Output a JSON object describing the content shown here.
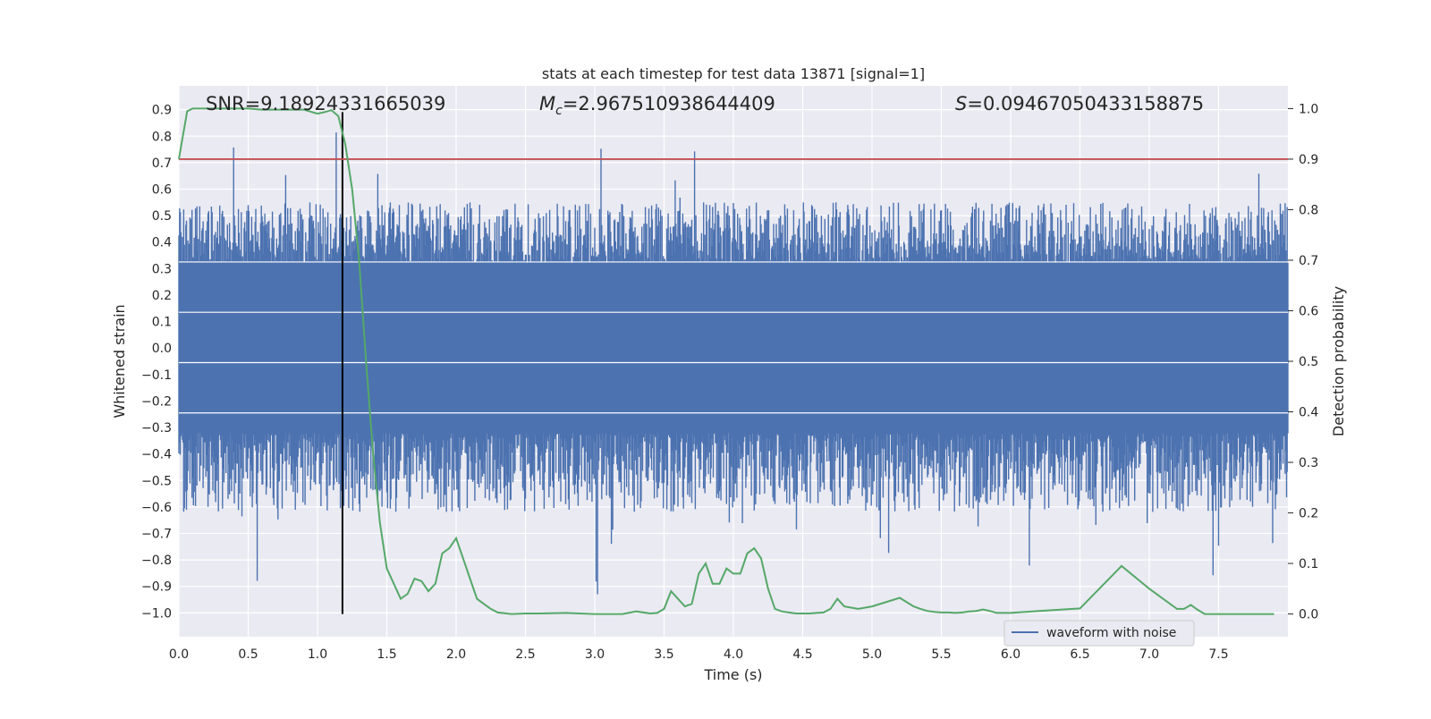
{
  "chart_data": {
    "type": "line",
    "title": "stats at each timestep for test data 13871 [signal=1]",
    "xlabel": "Time (s)",
    "ylabel": "Whitened strain",
    "y2label": "Detection probability",
    "xlim": [
      0.0,
      8.0
    ],
    "ylim": [
      -1.09,
      0.99
    ],
    "y2lim": [
      -0.045,
      1.045
    ],
    "xticks": [
      0.0,
      0.5,
      1.0,
      1.5,
      2.0,
      2.5,
      3.0,
      3.5,
      4.0,
      4.5,
      5.0,
      5.5,
      6.0,
      6.5,
      7.0,
      7.5
    ],
    "xtick_labels": [
      "0.0",
      "0.5",
      "1.0",
      "1.5",
      "2.0",
      "2.5",
      "3.0",
      "3.5",
      "4.0",
      "4.5",
      "5.0",
      "5.5",
      "6.0",
      "6.5",
      "7.0",
      "7.5"
    ],
    "yticks": [
      -1.0,
      -0.9,
      -0.8,
      -0.7,
      -0.6,
      -0.5,
      -0.4,
      -0.3,
      -0.2,
      -0.1,
      0.0,
      0.1,
      0.2,
      0.3,
      0.4,
      0.5,
      0.6,
      0.7,
      0.8,
      0.9
    ],
    "ytick_labels": [
      "−1.0",
      "−0.9",
      "−0.8",
      "−0.7",
      "−0.6",
      "−0.5",
      "−0.4",
      "−0.3",
      "−0.2",
      "−0.1",
      "0.0",
      "0.1",
      "0.2",
      "0.3",
      "0.4",
      "0.5",
      "0.6",
      "0.7",
      "0.8",
      "0.9"
    ],
    "y2ticks": [
      0.0,
      0.1,
      0.2,
      0.3,
      0.4,
      0.5,
      0.6,
      0.7,
      0.8,
      0.9,
      1.0
    ],
    "y2tick_labels": [
      "0.0",
      "0.1",
      "0.2",
      "0.3",
      "0.4",
      "0.5",
      "0.6",
      "0.7",
      "0.8",
      "0.9",
      "1.0"
    ],
    "annotations": {
      "snr": "SNR=9.18924331665039",
      "mc_symbol": "M",
      "mc_subscript": "c",
      "mc_value": "=2.967510938644409",
      "s_symbol": "S",
      "s_value": "=0.09467050433158875"
    },
    "threshold_probability": 0.9,
    "event_time": 1.18,
    "waveform": {
      "name": "waveform with noise",
      "color": "#4c72b0",
      "core_amplitude": 0.32,
      "typical_peak": 0.55,
      "max_peak": 0.9,
      "min_peak": -1.0
    },
    "probability_series": {
      "name": "Detection probability",
      "color": "#55a868",
      "x": [
        0.0,
        0.06,
        0.1,
        0.2,
        0.3,
        0.4,
        0.5,
        0.6,
        0.7,
        0.8,
        0.9,
        1.0,
        1.05,
        1.1,
        1.15,
        1.2,
        1.25,
        1.3,
        1.35,
        1.4,
        1.45,
        1.5,
        1.55,
        1.6,
        1.65,
        1.7,
        1.75,
        1.8,
        1.85,
        1.9,
        1.95,
        2.0,
        2.05,
        2.1,
        2.15,
        2.2,
        2.25,
        2.3,
        2.4,
        2.5,
        2.6,
        2.8,
        3.0,
        3.2,
        3.3,
        3.4,
        3.45,
        3.5,
        3.55,
        3.6,
        3.65,
        3.7,
        3.75,
        3.8,
        3.85,
        3.9,
        3.95,
        4.0,
        4.05,
        4.1,
        4.15,
        4.2,
        4.25,
        4.3,
        4.35,
        4.4,
        4.45,
        4.5,
        4.55,
        4.6,
        4.65,
        4.7,
        4.75,
        4.8,
        4.9,
        5.0,
        5.2,
        5.3,
        5.35,
        5.4,
        5.45,
        5.5,
        5.55,
        5.6,
        5.65,
        5.7,
        5.75,
        5.8,
        5.85,
        5.9,
        6.0,
        6.2,
        6.5,
        6.8,
        7.0,
        7.2,
        7.25,
        7.3,
        7.35,
        7.4,
        7.45,
        7.5,
        7.55,
        7.6,
        7.65,
        7.7,
        7.75,
        7.8,
        7.85,
        7.9
      ],
      "y": [
        0.9,
        0.995,
        1.0,
        1.0,
        1.0,
        1.0,
        1.0,
        0.998,
        0.998,
        0.998,
        0.998,
        0.99,
        0.993,
        0.997,
        0.985,
        0.93,
        0.84,
        0.7,
        0.5,
        0.32,
        0.18,
        0.09,
        0.06,
        0.03,
        0.04,
        0.07,
        0.065,
        0.045,
        0.06,
        0.12,
        0.13,
        0.15,
        0.11,
        0.07,
        0.03,
        0.02,
        0.01,
        0.003,
        0.0,
        0.001,
        0.001,
        0.002,
        0.0,
        0.0,
        0.005,
        0.001,
        0.002,
        0.01,
        0.045,
        0.03,
        0.015,
        0.02,
        0.08,
        0.1,
        0.06,
        0.06,
        0.09,
        0.08,
        0.08,
        0.12,
        0.13,
        0.11,
        0.05,
        0.01,
        0.005,
        0.003,
        0.001,
        0.001,
        0.001,
        0.002,
        0.003,
        0.01,
        0.03,
        0.015,
        0.01,
        0.015,
        0.032,
        0.015,
        0.01,
        0.006,
        0.004,
        0.003,
        0.003,
        0.002,
        0.003,
        0.005,
        0.006,
        0.009,
        0.006,
        0.002,
        0.002,
        0.006,
        0.011,
        0.095,
        0.05,
        0.01,
        0.01,
        0.018,
        0.008,
        0.0,
        0.0,
        0.0,
        0.0,
        0.0,
        0.0,
        0.0,
        0.0,
        0.0,
        0.0,
        0.0
      ]
    }
  }
}
